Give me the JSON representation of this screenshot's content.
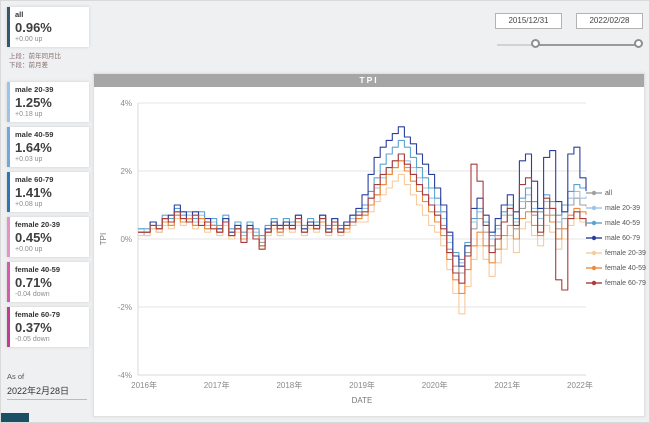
{
  "kpi": {
    "cards": [
      {
        "label": "all",
        "value": "0.96%",
        "delta": "+0.00 up",
        "accent": "#33596b"
      },
      {
        "label": "male 20-39",
        "value": "1.25%",
        "delta": "+0.18 up",
        "accent": "#9dc3e6"
      },
      {
        "label": "male 40-59",
        "value": "1.64%",
        "delta": "+0.03 up",
        "accent": "#6fa8dc"
      },
      {
        "label": "male 60-79",
        "value": "1.41%",
        "delta": "+0.08 up",
        "accent": "#2e75b6"
      },
      {
        "label": "female 20-39",
        "value": "0.45%",
        "delta": "+0.00 up",
        "accent": "#e791c9"
      },
      {
        "label": "female 40-59",
        "value": "0.71%",
        "delta": "-0.04 down",
        "accent": "#d45cab"
      },
      {
        "label": "female 60-79",
        "value": "0.37%",
        "delta": "-0.05 down",
        "accent": "#c03d92"
      }
    ],
    "note_line1": "上段：前年同月比",
    "note_line2": "下段：前月差",
    "as_of_label": "As of",
    "as_of_date": "2022年2月28日"
  },
  "slicer": {
    "start_date": "2015/12/31",
    "end_date": "2022/02/28"
  },
  "chart_data": {
    "type": "line",
    "title": "TPI",
    "xlabel": "DATE",
    "ylabel": "TPI",
    "ylim": [
      -4,
      4
    ],
    "y_ticks": [
      "4%",
      "2%",
      "0%",
      "-2%",
      "-4%"
    ],
    "x_tick_labels": [
      "2016年",
      "2017年",
      "2018年",
      "2019年",
      "2020年",
      "2021年",
      "2022年"
    ],
    "x_start": "2015-12",
    "x_end": "2022-02",
    "legend_position": "right",
    "grid": "horizontal",
    "series": [
      {
        "name": "all",
        "color": "#a0a0a0",
        "values": [
          0.2,
          0.1,
          0.3,
          0.2,
          0.5,
          0.4,
          0.7,
          0.5,
          0.6,
          0.4,
          0.6,
          0.3,
          0.4,
          0.2,
          0.5,
          0.1,
          0.3,
          0.0,
          0.3,
          0.1,
          -0.1,
          0.2,
          0.4,
          0.2,
          0.4,
          0.3,
          0.5,
          0.2,
          0.4,
          0.3,
          0.5,
          0.2,
          0.4,
          0.2,
          0.3,
          0.5,
          0.6,
          0.7,
          1.0,
          1.3,
          1.6,
          1.9,
          2.1,
          2.3,
          2.1,
          1.9,
          1.6,
          1.3,
          1.0,
          0.8,
          0.4,
          -0.3,
          -0.8,
          -1.0,
          -0.4,
          0.3,
          0.6,
          0.2,
          -0.2,
          0.1,
          0.5,
          0.7,
          0.3,
          0.9,
          1.1,
          0.7,
          0.4,
          0.9,
          0.7,
          0.3,
          0.6,
          1.0,
          1.2,
          1.0,
          0.96
        ]
      },
      {
        "name": "male 20-39",
        "color": "#9dc3e6",
        "values": [
          0.3,
          0.2,
          0.4,
          0.3,
          0.6,
          0.5,
          0.8,
          0.6,
          0.7,
          0.5,
          0.7,
          0.4,
          0.5,
          0.3,
          0.6,
          0.2,
          0.4,
          0.1,
          0.4,
          0.2,
          0.0,
          0.3,
          0.5,
          0.3,
          0.5,
          0.4,
          0.6,
          0.3,
          0.5,
          0.4,
          0.6,
          0.3,
          0.5,
          0.3,
          0.4,
          0.6,
          0.7,
          0.9,
          1.2,
          1.5,
          1.8,
          2.1,
          2.3,
          2.5,
          2.3,
          2.1,
          1.8,
          1.5,
          1.2,
          1.0,
          0.6,
          -0.1,
          -0.5,
          -0.7,
          -0.2,
          0.5,
          0.8,
          0.4,
          0.0,
          0.3,
          0.7,
          0.9,
          0.5,
          1.1,
          1.3,
          0.9,
          0.6,
          1.1,
          0.9,
          0.5,
          0.8,
          1.2,
          1.4,
          1.2,
          1.25
        ]
      },
      {
        "name": "male 40-59",
        "color": "#5ba3cf",
        "values": [
          0.3,
          0.3,
          0.5,
          0.4,
          0.7,
          0.6,
          0.9,
          0.7,
          0.8,
          0.6,
          0.8,
          0.5,
          0.6,
          0.4,
          0.7,
          0.3,
          0.5,
          0.2,
          0.5,
          0.3,
          0.1,
          0.4,
          0.6,
          0.4,
          0.6,
          0.5,
          0.7,
          0.4,
          0.6,
          0.5,
          0.7,
          0.4,
          0.6,
          0.4,
          0.5,
          0.7,
          0.8,
          1.0,
          1.4,
          1.8,
          2.2,
          2.5,
          2.7,
          2.9,
          2.7,
          2.4,
          2.1,
          1.8,
          1.5,
          1.2,
          0.8,
          0.1,
          -0.4,
          -0.6,
          -0.1,
          0.6,
          0.9,
          0.5,
          0.1,
          0.4,
          0.8,
          1.0,
          0.6,
          1.2,
          1.5,
          1.1,
          0.8,
          1.3,
          1.1,
          0.7,
          1.0,
          1.4,
          1.6,
          1.5,
          1.64
        ]
      },
      {
        "name": "male 60-79",
        "color": "#2a3f9d",
        "values": [
          0.2,
          0.2,
          0.5,
          0.3,
          0.6,
          0.7,
          1.0,
          0.8,
          0.6,
          0.8,
          0.5,
          0.6,
          0.4,
          0.3,
          0.6,
          0.2,
          0.4,
          0.0,
          0.4,
          0.1,
          -0.2,
          0.3,
          0.5,
          0.4,
          0.5,
          0.4,
          0.7,
          0.3,
          0.5,
          0.4,
          0.7,
          0.3,
          0.6,
          0.3,
          0.5,
          0.7,
          0.9,
          1.3,
          1.9,
          2.4,
          2.7,
          2.9,
          3.1,
          3.3,
          3.0,
          2.8,
          2.5,
          2.2,
          1.9,
          1.5,
          1.0,
          0.2,
          -0.5,
          -0.8,
          -0.2,
          0.9,
          1.2,
          0.7,
          0.2,
          0.6,
          1.0,
          1.3,
          0.8,
          2.3,
          2.5,
          1.7,
          0.9,
          2.4,
          2.6,
          1.1,
          0.8,
          2.5,
          2.7,
          1.8,
          1.41
        ]
      },
      {
        "name": "female 20-39",
        "color": "#f8cb9d",
        "values": [
          0.1,
          0.1,
          0.3,
          0.2,
          0.4,
          0.3,
          0.6,
          0.4,
          0.5,
          0.3,
          0.5,
          0.2,
          0.3,
          0.1,
          0.4,
          0.0,
          0.2,
          -0.1,
          0.2,
          0.0,
          -0.3,
          0.1,
          0.3,
          0.1,
          0.3,
          0.2,
          0.4,
          0.1,
          0.3,
          0.2,
          0.4,
          0.1,
          0.3,
          0.1,
          0.2,
          0.4,
          0.5,
          0.5,
          0.8,
          1.1,
          1.3,
          1.5,
          1.7,
          1.9,
          1.6,
          1.3,
          1.0,
          0.7,
          0.4,
          0.2,
          -0.2,
          -0.9,
          -1.6,
          -2.2,
          -1.4,
          -0.6,
          -0.2,
          -0.6,
          -1.1,
          -0.7,
          -0.3,
          0.1,
          -0.4,
          0.3,
          0.5,
          0.1,
          -0.2,
          0.4,
          0.2,
          -0.3,
          0.0,
          0.4,
          0.6,
          0.5,
          0.45
        ]
      },
      {
        "name": "female 40-59",
        "color": "#ed8c3b",
        "values": [
          0.2,
          0.2,
          0.4,
          0.3,
          0.5,
          0.4,
          0.7,
          0.5,
          0.6,
          0.4,
          0.6,
          0.3,
          0.4,
          0.2,
          0.5,
          0.1,
          0.3,
          0.0,
          0.3,
          0.1,
          -0.2,
          0.2,
          0.4,
          0.2,
          0.4,
          0.3,
          0.5,
          0.2,
          0.4,
          0.3,
          0.5,
          0.2,
          0.4,
          0.2,
          0.3,
          0.5,
          0.6,
          0.7,
          1.0,
          1.3,
          1.6,
          1.9,
          2.1,
          2.3,
          2.0,
          1.7,
          1.4,
          1.1,
          0.8,
          0.5,
          0.1,
          -0.6,
          -1.2,
          -1.6,
          -0.9,
          -0.2,
          0.2,
          -0.2,
          -0.7,
          -0.3,
          0.1,
          0.4,
          0.0,
          0.6,
          0.8,
          0.4,
          0.1,
          0.7,
          0.5,
          0.0,
          0.3,
          0.7,
          0.9,
          0.8,
          0.71
        ]
      },
      {
        "name": "female 60-79",
        "color": "#a83b3b",
        "values": [
          0.2,
          0.2,
          0.4,
          0.3,
          0.6,
          0.5,
          0.8,
          0.6,
          0.5,
          0.7,
          0.4,
          0.5,
          0.3,
          0.2,
          0.5,
          0.1,
          0.3,
          -0.1,
          0.3,
          0.0,
          -0.3,
          0.2,
          0.4,
          0.3,
          0.4,
          0.3,
          0.6,
          0.2,
          0.4,
          0.3,
          0.6,
          0.2,
          0.5,
          0.2,
          0.4,
          0.5,
          0.7,
          0.8,
          1.2,
          1.6,
          1.9,
          2.1,
          2.3,
          2.5,
          2.2,
          1.9,
          1.6,
          1.3,
          1.0,
          0.7,
          0.3,
          -0.4,
          -1.0,
          -1.3,
          -0.5,
          2.2,
          1.7,
          0.4,
          -0.4,
          0.0,
          0.5,
          0.9,
          0.4,
          1.6,
          1.8,
          0.8,
          0.2,
          1.2,
          0.9,
          -1.2,
          -1.5,
          0.6,
          0.8,
          0.6,
          0.37
        ]
      }
    ]
  }
}
